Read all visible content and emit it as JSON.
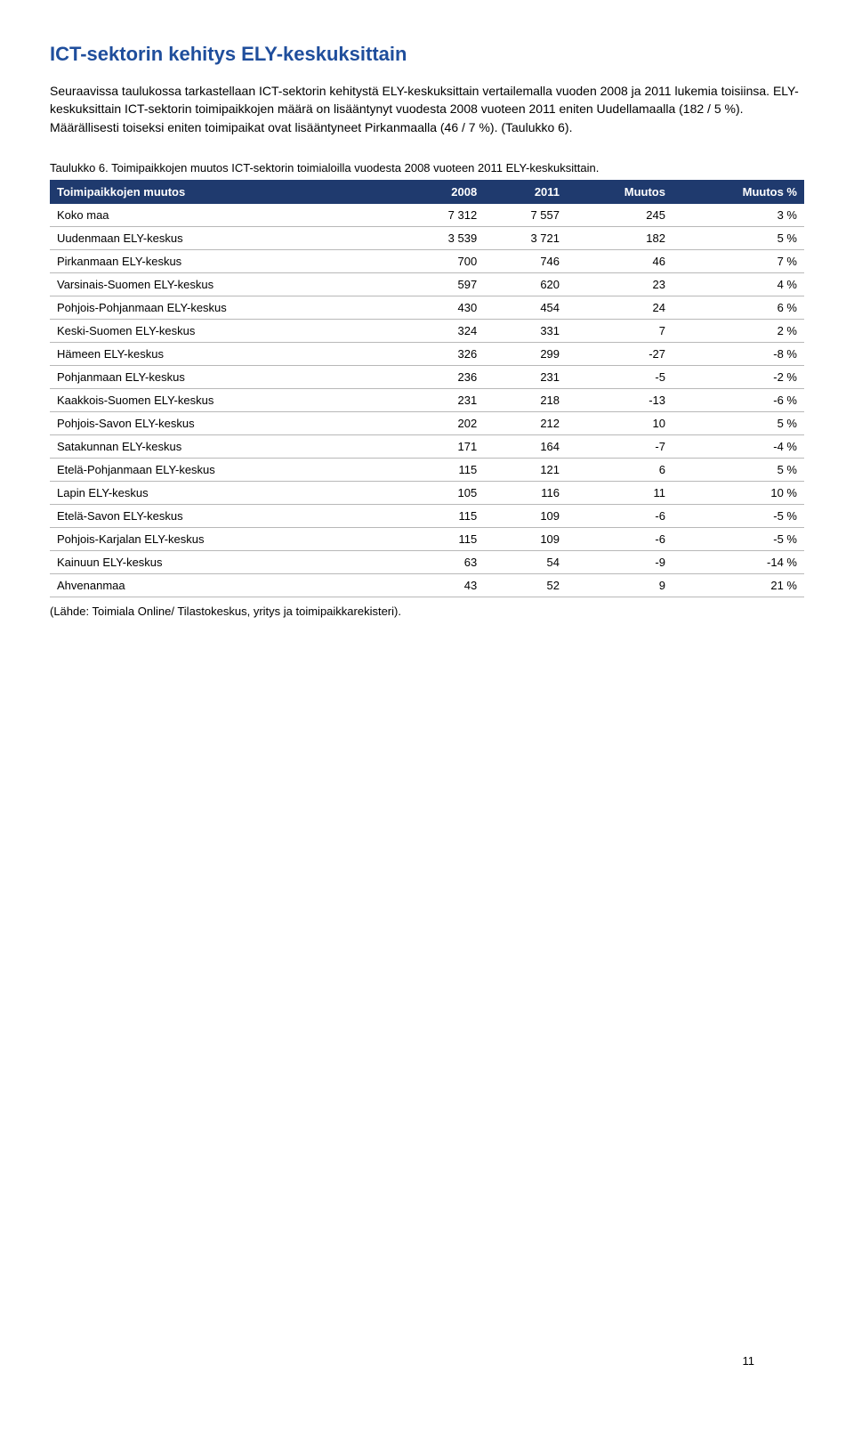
{
  "section": {
    "title": "ICT-sektorin kehitys ELY-keskuksittain",
    "para1": "Seuraavissa taulukossa tarkastellaan ICT-sektorin kehitystä ELY-keskuksittain vertailemalla vuoden 2008 ja 2011 lukemia toisiinsa. ELY-keskuksittain ICT-sektorin toimipaikkojen määrä on lisääntynyt vuodesta 2008 vuoteen 2011 eniten Uudellamaalla (182 / 5 %). Määrällisesti toiseksi eniten toimipaikat ovat lisääntyneet Pirkanmaalla (46 / 7 %). (Taulukko 6)."
  },
  "table6": {
    "caption": "Taulukko 6. Toimipaikkojen muutos ICT-sektorin toimialoilla vuodesta 2008 vuoteen 2011 ELY-keskuksittain.",
    "headers": {
      "c0": "Toimipaikkojen muutos",
      "c1": "2008",
      "c2": "2011",
      "c3": "Muutos",
      "c4": "Muutos %"
    },
    "rows": [
      {
        "label": "Koko maa",
        "v08": "7 312",
        "v11": "7 557",
        "diff": "245",
        "pct": "3 %"
      },
      {
        "label": "Uudenmaan ELY-keskus",
        "v08": "3 539",
        "v11": "3 721",
        "diff": "182",
        "pct": "5 %"
      },
      {
        "label": "Pirkanmaan ELY-keskus",
        "v08": "700",
        "v11": "746",
        "diff": "46",
        "pct": "7 %"
      },
      {
        "label": "Varsinais-Suomen ELY-keskus",
        "v08": "597",
        "v11": "620",
        "diff": "23",
        "pct": "4 %"
      },
      {
        "label": "Pohjois-Pohjanmaan ELY-keskus",
        "v08": "430",
        "v11": "454",
        "diff": "24",
        "pct": "6 %"
      },
      {
        "label": "Keski-Suomen ELY-keskus",
        "v08": "324",
        "v11": "331",
        "diff": "7",
        "pct": "2 %"
      },
      {
        "label": "Hämeen ELY-keskus",
        "v08": "326",
        "v11": "299",
        "diff": "-27",
        "pct": "-8 %"
      },
      {
        "label": "Pohjanmaan ELY-keskus",
        "v08": "236",
        "v11": "231",
        "diff": "-5",
        "pct": "-2 %"
      },
      {
        "label": "Kaakkois-Suomen ELY-keskus",
        "v08": "231",
        "v11": "218",
        "diff": "-13",
        "pct": "-6 %"
      },
      {
        "label": "Pohjois-Savon ELY-keskus",
        "v08": "202",
        "v11": "212",
        "diff": "10",
        "pct": "5 %"
      },
      {
        "label": "Satakunnan ELY-keskus",
        "v08": "171",
        "v11": "164",
        "diff": "-7",
        "pct": "-4 %"
      },
      {
        "label": "Etelä-Pohjanmaan ELY-keskus",
        "v08": "115",
        "v11": "121",
        "diff": "6",
        "pct": "5 %"
      },
      {
        "label": "Lapin ELY-keskus",
        "v08": "105",
        "v11": "116",
        "diff": "11",
        "pct": "10 %"
      },
      {
        "label": "Etelä-Savon ELY-keskus",
        "v08": "115",
        "v11": "109",
        "diff": "-6",
        "pct": "-5 %"
      },
      {
        "label": "Pohjois-Karjalan ELY-keskus",
        "v08": "115",
        "v11": "109",
        "diff": "-6",
        "pct": "-5 %"
      },
      {
        "label": "Kainuun ELY-keskus",
        "v08": "63",
        "v11": "54",
        "diff": "-9",
        "pct": "-14 %"
      },
      {
        "label": "Ahvenanmaa",
        "v08": "43",
        "v11": "52",
        "diff": "9",
        "pct": "21 %"
      }
    ],
    "source": "(Lähde: Toimiala Online/ Tilastokeskus, yritys ja toimipaikkarekisteri)."
  },
  "page": {
    "number": "11"
  },
  "style": {
    "title_color": "#1f4e9c",
    "thead_bg": "#1f3a6e",
    "thead_fg": "#ffffff",
    "row_border": "#b8b8b8"
  }
}
